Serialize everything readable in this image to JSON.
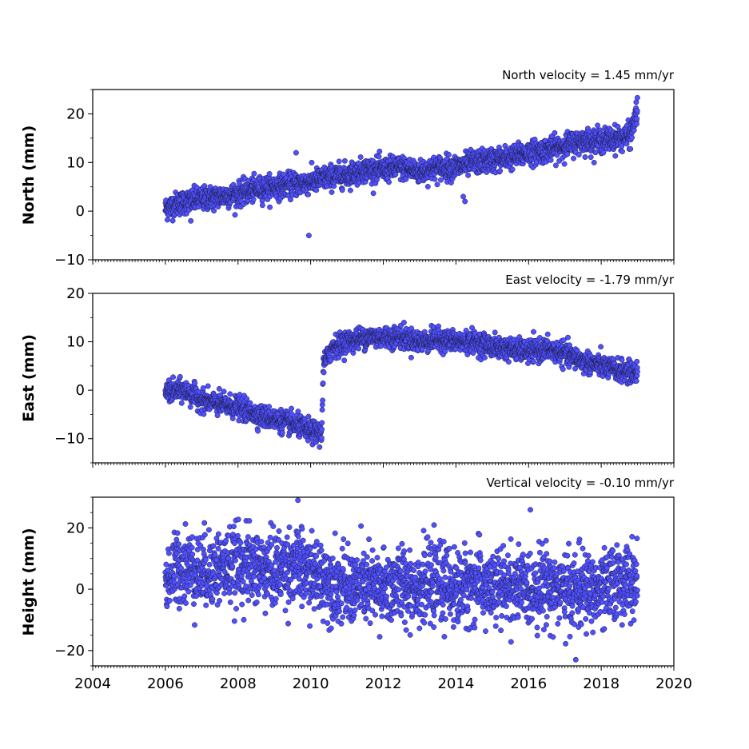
{
  "chart_data": [
    {
      "type": "scatter",
      "title": "North velocity = 1.45 mm/yr",
      "ylabel": "North (mm)",
      "xlim": [
        2004,
        2020
      ],
      "ylim": [
        -10,
        25
      ],
      "yticks": [
        -10,
        0,
        10,
        20
      ],
      "ytick_labels": [
        "−10",
        "0",
        "10",
        "20"
      ],
      "xticks": [
        2004,
        2006,
        2008,
        2010,
        2012,
        2014,
        2016,
        2018,
        2020
      ],
      "xtick_labels_shown": false,
      "series": [
        {
          "x": [
            2006.0,
            2006.3,
            2006.6,
            2007.0,
            2007.5,
            2008.0,
            2008.5,
            2009.0,
            2009.5,
            2010.0,
            2010.5,
            2011.0,
            2011.5,
            2012.0,
            2012.5,
            2013.0,
            2013.5,
            2014.0,
            2014.5,
            2015.0,
            2015.5,
            2016.0,
            2016.5,
            2017.0,
            2017.5,
            2018.0,
            2018.5,
            2018.8,
            2019.0
          ],
          "y": [
            0.5,
            1.5,
            2.0,
            2.5,
            3.0,
            3.5,
            4.5,
            5.0,
            5.5,
            6.0,
            7.0,
            7.5,
            8.5,
            8.5,
            9.0,
            8.0,
            9.0,
            9.0,
            10.0,
            10.5,
            11.0,
            12.0,
            12.5,
            13.5,
            14.5,
            14.5,
            15.0,
            15.5,
            21.0
          ],
          "spread": 1.2
        }
      ],
      "outliers": {
        "x": [
          2006.7,
          2009.6,
          2009.95,
          2014.2,
          2014.25
        ],
        "y": [
          -2.0,
          12.0,
          -5.0,
          3.0,
          2.0
        ]
      },
      "color": "#5050ff",
      "edgecolor": "#1a1a40"
    },
    {
      "type": "scatter",
      "title": "East velocity = -1.79 mm/yr",
      "ylabel": "East (mm)",
      "xlim": [
        2004,
        2020
      ],
      "ylim": [
        -15,
        20
      ],
      "yticks": [
        -10,
        0,
        10,
        20
      ],
      "ytick_labels": [
        "−10",
        "0",
        "10",
        "20"
      ],
      "xticks": [
        2004,
        2006,
        2008,
        2010,
        2012,
        2014,
        2016,
        2018,
        2020
      ],
      "xtick_labels_shown": false,
      "series": [
        {
          "x": [
            2006.0,
            2006.5,
            2007.0,
            2007.5,
            2008.0,
            2008.5,
            2009.0,
            2009.5,
            2010.0,
            2010.3,
            2010.35,
            2010.6,
            2011.0,
            2011.5,
            2012.0,
            2012.5,
            2013.0,
            2013.5,
            2014.0,
            2014.5,
            2015.0,
            2015.5,
            2016.0,
            2016.5,
            2017.0,
            2017.5,
            2018.0,
            2018.5,
            2019.0
          ],
          "y": [
            -0.5,
            0.0,
            -2.0,
            -3.0,
            -3.5,
            -5.0,
            -6.0,
            -7.0,
            -8.5,
            -9.0,
            5.0,
            9.0,
            10.0,
            11.0,
            11.0,
            11.0,
            10.0,
            10.5,
            10.0,
            10.0,
            9.0,
            8.5,
            8.0,
            8.5,
            7.5,
            6.0,
            5.0,
            4.0,
            3.5
          ],
          "spread": 1.1
        }
      ],
      "color": "#5050ff",
      "edgecolor": "#1a1a40"
    },
    {
      "type": "scatter",
      "title": "Vertical velocity = -0.10 mm/yr",
      "ylabel": "Height (mm)",
      "xlim": [
        2004,
        2020
      ],
      "ylim": [
        -25,
        30
      ],
      "yticks": [
        -20,
        0,
        20
      ],
      "ytick_labels": [
        "−20",
        "0",
        "20"
      ],
      "xticks": [
        2004,
        2006,
        2008,
        2010,
        2012,
        2014,
        2016,
        2018,
        2020
      ],
      "xtick_labels": [
        "2004",
        "2006",
        "2008",
        "2010",
        "2012",
        "2014",
        "2016",
        "2018",
        "2020"
      ],
      "series": [
        {
          "x": [
            2006.0,
            2006.5,
            2007.0,
            2007.5,
            2008.0,
            2008.5,
            2009.0,
            2009.5,
            2010.0,
            2010.5,
            2011.0,
            2011.5,
            2012.0,
            2012.5,
            2013.0,
            2013.5,
            2014.0,
            2014.5,
            2015.0,
            2015.5,
            2016.0,
            2016.5,
            2017.0,
            2017.5,
            2018.0,
            2018.5,
            2019.0
          ],
          "y": [
            3.0,
            8.0,
            6.0,
            7.0,
            8.0,
            7.0,
            6.0,
            8.0,
            5.0,
            3.0,
            0.0,
            1.0,
            0.0,
            2.0,
            1.0,
            2.0,
            0.0,
            2.0,
            0.0,
            1.0,
            0.0,
            2.0,
            -1.0,
            0.0,
            -1.0,
            3.0,
            2.0
          ],
          "spread": 6.0
        }
      ],
      "outliers": {
        "x": [
          2009.65,
          2017.3,
          2011.9
        ],
        "y": [
          29.0,
          -23.0,
          -15.5
        ]
      },
      "color": "#5050ff",
      "edgecolor": "#1a1a40"
    }
  ]
}
